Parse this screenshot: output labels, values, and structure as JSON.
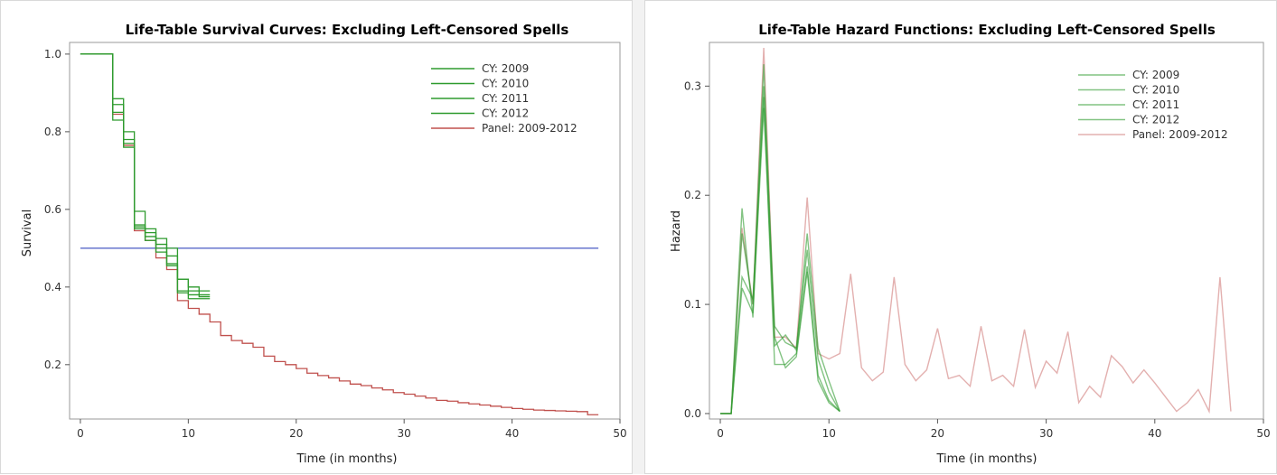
{
  "colors": {
    "green": "#2e9b2e",
    "red": "#c0504d",
    "blue": "#4a5bc4",
    "frame": "#9a9a9a"
  },
  "chart_data": [
    {
      "type": "line",
      "step": true,
      "title": "Life-Table Survival Curves: Excluding Left-Censored Spells",
      "xlabel": "Time (in months)",
      "ylabel": "Survival",
      "xlim": [
        -1,
        50
      ],
      "ylim": [
        0.06,
        1.03
      ],
      "xticks": [
        0,
        10,
        20,
        30,
        40,
        50
      ],
      "yticks": [
        0.2,
        0.4,
        0.6,
        0.8,
        1.0
      ],
      "xtick_labels": [
        "0",
        "10",
        "20",
        "30",
        "40",
        "50"
      ],
      "ytick_labels": [
        "0.2",
        "0.4",
        "0.6",
        "0.8",
        "1.0"
      ],
      "legend_position": "top-right",
      "reference_line": {
        "y": 0.5,
        "x_range": [
          0,
          48
        ]
      },
      "series": [
        {
          "name": "CY: 2009",
          "color": "green",
          "x": [
            0,
            3,
            4,
            5,
            6,
            7,
            8,
            9,
            10,
            11,
            12
          ],
          "y": [
            1.0,
            0.885,
            0.8,
            0.595,
            0.55,
            0.525,
            0.5,
            0.42,
            0.4,
            0.39,
            0.39
          ]
        },
        {
          "name": "CY: 2010",
          "color": "green",
          "x": [
            0,
            3,
            4,
            5,
            6,
            7,
            8,
            9,
            10,
            11,
            12
          ],
          "y": [
            1.0,
            0.85,
            0.78,
            0.56,
            0.54,
            0.51,
            0.48,
            0.42,
            0.39,
            0.38,
            0.38
          ]
        },
        {
          "name": "CY: 2011",
          "color": "green",
          "x": [
            0,
            3,
            4,
            5,
            6,
            7,
            8,
            9,
            10,
            11,
            12
          ],
          "y": [
            1.0,
            0.87,
            0.77,
            0.555,
            0.53,
            0.5,
            0.46,
            0.39,
            0.38,
            0.375,
            0.375
          ]
        },
        {
          "name": "CY: 2012",
          "color": "green",
          "x": [
            0,
            3,
            4,
            5,
            6,
            7,
            8,
            9,
            10,
            11,
            12
          ],
          "y": [
            1.0,
            0.83,
            0.76,
            0.55,
            0.52,
            0.49,
            0.455,
            0.385,
            0.37,
            0.37,
            0.37
          ]
        },
        {
          "name": "Panel: 2009-2012",
          "color": "red",
          "x": [
            0,
            3,
            4,
            5,
            6,
            7,
            8,
            9,
            10,
            11,
            12,
            13,
            14,
            15,
            16,
            17,
            18,
            19,
            20,
            21,
            22,
            23,
            24,
            25,
            26,
            27,
            28,
            29,
            30,
            31,
            32,
            33,
            34,
            35,
            36,
            37,
            38,
            39,
            40,
            41,
            42,
            43,
            44,
            45,
            46,
            47,
            48
          ],
          "y": [
            1.0,
            0.845,
            0.765,
            0.545,
            0.52,
            0.475,
            0.445,
            0.365,
            0.345,
            0.33,
            0.31,
            0.275,
            0.262,
            0.255,
            0.245,
            0.222,
            0.208,
            0.2,
            0.19,
            0.178,
            0.172,
            0.166,
            0.158,
            0.15,
            0.146,
            0.14,
            0.135,
            0.128,
            0.124,
            0.119,
            0.114,
            0.108,
            0.106,
            0.102,
            0.099,
            0.096,
            0.093,
            0.09,
            0.087,
            0.085,
            0.083,
            0.082,
            0.081,
            0.08,
            0.079,
            0.071,
            0.071
          ]
        }
      ]
    },
    {
      "type": "line",
      "title": "Life-Table Hazard Functions: Excluding Left-Censored Spells",
      "xlabel": "Time (in months)",
      "ylabel": "Hazard",
      "xlim": [
        -1,
        50
      ],
      "ylim": [
        -0.005,
        0.34
      ],
      "xticks": [
        0,
        10,
        20,
        30,
        40,
        50
      ],
      "yticks": [
        0.0,
        0.1,
        0.2,
        0.3
      ],
      "xtick_labels": [
        "0",
        "10",
        "20",
        "30",
        "40",
        "50"
      ],
      "ytick_labels": [
        "0.0",
        "0.1",
        "0.2",
        "0.3"
      ],
      "legend_position": "top-right",
      "series": [
        {
          "name": "CY: 2009",
          "color": "green",
          "x": [
            0,
            1,
            2,
            3,
            4,
            5,
            6,
            7,
            8,
            9,
            10,
            11
          ],
          "y": [
            0,
            0,
            0.125,
            0.105,
            0.29,
            0.045,
            0.045,
            0.055,
            0.135,
            0.035,
            0.012,
            0.002
          ]
        },
        {
          "name": "CY: 2010",
          "color": "green",
          "x": [
            0,
            1,
            2,
            3,
            4,
            5,
            6,
            7,
            8,
            9,
            10,
            11
          ],
          "y": [
            0,
            0,
            0.188,
            0.088,
            0.3,
            0.08,
            0.065,
            0.06,
            0.15,
            0.05,
            0.02,
            0.002
          ]
        },
        {
          "name": "CY: 2011",
          "color": "green",
          "x": [
            0,
            1,
            2,
            3,
            4,
            5,
            6,
            7,
            8,
            9,
            10,
            11
          ],
          "y": [
            0,
            0,
            0.165,
            0.1,
            0.32,
            0.062,
            0.072,
            0.058,
            0.165,
            0.06,
            0.03,
            0.002
          ]
        },
        {
          "name": "CY: 2012",
          "color": "green",
          "x": [
            0,
            1,
            2,
            3,
            4,
            5,
            6,
            7,
            8,
            9,
            10,
            11
          ],
          "y": [
            0,
            0,
            0.115,
            0.092,
            0.28,
            0.07,
            0.042,
            0.052,
            0.13,
            0.03,
            0.01,
            0.002
          ]
        },
        {
          "name": "Panel: 2009-2012",
          "color": "red",
          "x": [
            0,
            1,
            2,
            3,
            4,
            5,
            6,
            7,
            8,
            9,
            10,
            11,
            12,
            13,
            14,
            15,
            16,
            17,
            18,
            19,
            20,
            21,
            22,
            23,
            24,
            25,
            26,
            27,
            28,
            29,
            30,
            31,
            32,
            33,
            34,
            35,
            36,
            37,
            38,
            39,
            40,
            41,
            42,
            43,
            44,
            45,
            46,
            47
          ],
          "y": [
            0,
            0,
            0.17,
            0.1,
            0.335,
            0.07,
            0.07,
            0.06,
            0.198,
            0.055,
            0.05,
            0.055,
            0.128,
            0.042,
            0.03,
            0.038,
            0.125,
            0.045,
            0.03,
            0.04,
            0.078,
            0.032,
            0.035,
            0.025,
            0.08,
            0.03,
            0.035,
            0.025,
            0.077,
            0.024,
            0.048,
            0.037,
            0.075,
            0.01,
            0.025,
            0.015,
            0.053,
            0.043,
            0.028,
            0.04,
            0.028,
            0.015,
            0.002,
            0.01,
            0.022,
            0.002,
            0.125,
            0.002
          ]
        }
      ]
    }
  ]
}
